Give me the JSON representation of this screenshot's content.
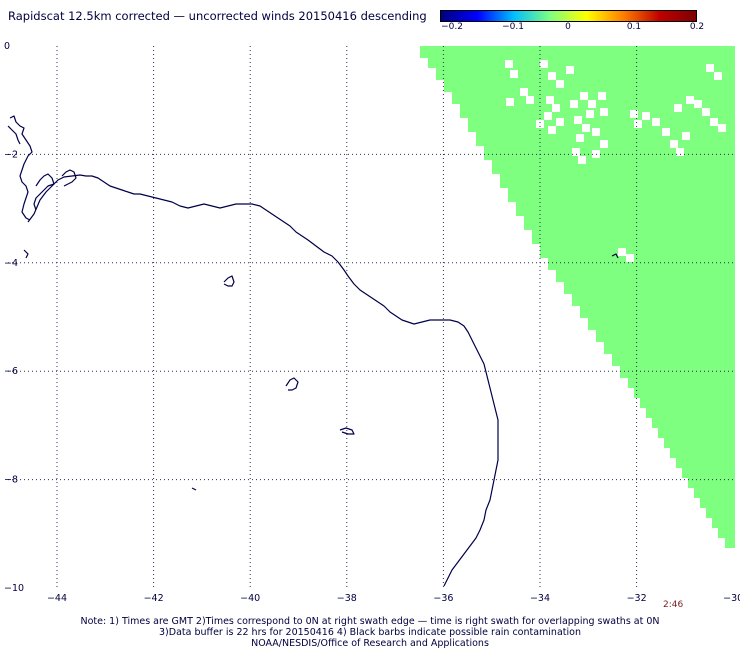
{
  "title": "Rapidscat 12.5km corrected — uncorrected winds 20150416 descending",
  "colorbar": {
    "ticks": [
      "−0.2",
      "−0.1",
      "0",
      "0.1",
      "0.2"
    ],
    "colors": [
      "#00007f",
      "#0000ff",
      "#00bfff",
      "#7fff7f",
      "#ffff00",
      "#ff7f00",
      "#bf0000",
      "#7f0000"
    ]
  },
  "map": {
    "lon_labels": [
      "−44",
      "−42",
      "−40",
      "−38",
      "−36",
      "−34",
      "−32",
      "−30"
    ],
    "lat_labels": [
      "0",
      "−2",
      "−4",
      "−6",
      "−8",
      "−10"
    ],
    "swath_color": "#7fff7f",
    "coast_color": "#00004a",
    "grid": true
  },
  "time_label": "2:46",
  "notes": [
    "Note: 1) Times are GMT 2)Times correspond to 0N at right swath edge — time is right swath for overlapping swaths at 0N",
    "3)Data buffer is 22 hrs for 20150416 4) Black barbs indicate possible rain contamination",
    "NOAA/NESDIS/Office of Research and Applications"
  ]
}
